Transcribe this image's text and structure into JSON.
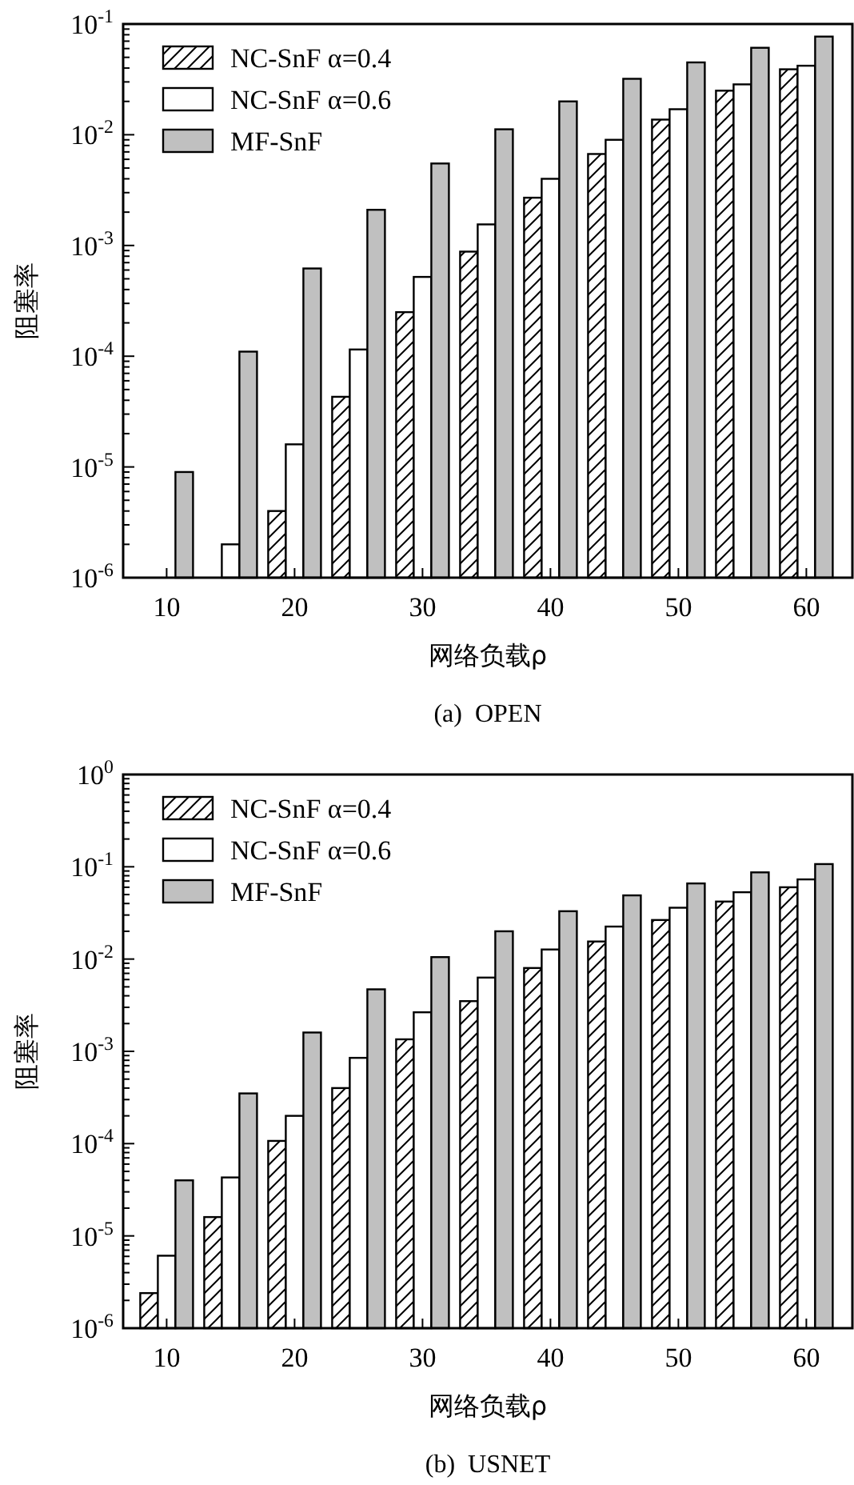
{
  "chart_data": [
    {
      "type": "bar",
      "title": "(a)  OPEN",
      "xlabel": "网络负载ρ",
      "ylabel": "阻塞率",
      "log": "y",
      "legend": "top left",
      "grid": false,
      "x": [
        10,
        15,
        20,
        25,
        30,
        35,
        40,
        45,
        50,
        55,
        60
      ],
      "xlim": [
        6.6,
        63.6
      ],
      "xticks": [
        10,
        20,
        30,
        40,
        50,
        60
      ],
      "ylim": [
        1e-06,
        0.1
      ],
      "yticks": [
        {
          "value": 1e-06,
          "label": "10$^{-6}$"
        },
        {
          "value": 2e-06,
          "label": null
        },
        {
          "value": 3e-06,
          "label": null
        },
        {
          "value": 4e-06,
          "label": null
        },
        {
          "value": 5e-06,
          "label": null
        },
        {
          "value": 6e-06,
          "label": null
        },
        {
          "value": 7e-06,
          "label": null
        },
        {
          "value": 8e-06,
          "label": null
        },
        {
          "value": 9e-06,
          "label": null
        },
        {
          "value": 1e-05,
          "label": "10$^{-5}$"
        },
        {
          "value": 2e-05,
          "label": null
        },
        {
          "value": 3e-05,
          "label": null
        },
        {
          "value": 4e-05,
          "label": null
        },
        {
          "value": 5e-05,
          "label": null
        },
        {
          "value": 6e-05,
          "label": null
        },
        {
          "value": 7e-05,
          "label": null
        },
        {
          "value": 8e-05,
          "label": null
        },
        {
          "value": 9e-05,
          "label": null
        },
        {
          "value": 0.0001,
          "label": "10$^{-4}$"
        },
        {
          "value": 0.0002,
          "label": null
        },
        {
          "value": 0.0003,
          "label": null
        },
        {
          "value": 0.0004,
          "label": null
        },
        {
          "value": 0.0005,
          "label": null
        },
        {
          "value": 0.0006,
          "label": null
        },
        {
          "value": 0.0007,
          "label": null
        },
        {
          "value": 0.0008,
          "label": null
        },
        {
          "value": 0.0009,
          "label": null
        },
        {
          "value": 0.001,
          "label": "10$^{-3}$"
        },
        {
          "value": 0.002,
          "label": null
        },
        {
          "value": 0.003,
          "label": null
        },
        {
          "value": 0.004,
          "label": null
        },
        {
          "value": 0.005,
          "label": null
        },
        {
          "value": 0.006,
          "label": null
        },
        {
          "value": 0.007,
          "label": null
        },
        {
          "value": 0.008,
          "label": null
        },
        {
          "value": 0.009,
          "label": null
        },
        {
          "value": 0.01,
          "label": "10$^{-2}$"
        },
        {
          "value": 0.02,
          "label": null
        },
        {
          "value": 0.03,
          "label": null
        },
        {
          "value": 0.04,
          "label": null
        },
        {
          "value": 0.05,
          "label": null
        },
        {
          "value": 0.06,
          "label": null
        },
        {
          "value": 0.07,
          "label": null
        },
        {
          "value": 0.08,
          "label": null
        },
        {
          "value": 0.09,
          "label": null
        },
        {
          "value": 0.1,
          "label": "10$^{-1}$"
        }
      ],
      "series": [
        {
          "name": "NC-SnF α=0.4",
          "color": "#000000",
          "values": [
            null,
            null,
            4e-06,
            4.3e-05,
            0.00025,
            0.00088,
            0.0027,
            0.0067,
            0.0137,
            0.025,
            0.039
          ]
        },
        {
          "name": "NC-SnF α=0.6",
          "color": "#ffffff",
          "values": [
            null,
            2e-06,
            1.6e-05,
            0.000115,
            0.00052,
            0.00155,
            0.004,
            0.009,
            0.017,
            0.0285,
            0.042
          ]
        },
        {
          "name": "MF-SnF",
          "color": "#c0c0c0",
          "values": [
            9e-06,
            0.00011,
            0.00062,
            0.0021,
            0.0055,
            0.0112,
            0.02,
            0.032,
            0.045,
            0.061,
            0.077
          ]
        }
      ]
    },
    {
      "type": "bar",
      "title": "(b)  USNET",
      "xlabel": "网络负载ρ",
      "ylabel": "阻塞率",
      "log": "y",
      "legend": "top left",
      "grid": false,
      "x": [
        10,
        15,
        20,
        25,
        30,
        35,
        40,
        45,
        50,
        55,
        60
      ],
      "xlim": [
        6.6,
        63.6
      ],
      "xticks": [
        10,
        20,
        30,
        40,
        50,
        60
      ],
      "ylim": [
        1e-06,
        1
      ],
      "yticks": [
        {
          "value": 1e-06,
          "label": "10$^{-6}$"
        },
        {
          "value": 2e-06,
          "label": null
        },
        {
          "value": 3e-06,
          "label": null
        },
        {
          "value": 4e-06,
          "label": null
        },
        {
          "value": 5e-06,
          "label": null
        },
        {
          "value": 6e-06,
          "label": null
        },
        {
          "value": 7e-06,
          "label": null
        },
        {
          "value": 8e-06,
          "label": null
        },
        {
          "value": 9e-06,
          "label": null
        },
        {
          "value": 1e-05,
          "label": "10$^{-5}$"
        },
        {
          "value": 2e-05,
          "label": null
        },
        {
          "value": 3e-05,
          "label": null
        },
        {
          "value": 4e-05,
          "label": null
        },
        {
          "value": 5e-05,
          "label": null
        },
        {
          "value": 6e-05,
          "label": null
        },
        {
          "value": 7e-05,
          "label": null
        },
        {
          "value": 8e-05,
          "label": null
        },
        {
          "value": 9e-05,
          "label": null
        },
        {
          "value": 0.0001,
          "label": "10$^{-4}$"
        },
        {
          "value": 0.0002,
          "label": null
        },
        {
          "value": 0.0003,
          "label": null
        },
        {
          "value": 0.0004,
          "label": null
        },
        {
          "value": 0.0005,
          "label": null
        },
        {
          "value": 0.0006,
          "label": null
        },
        {
          "value": 0.0007,
          "label": null
        },
        {
          "value": 0.0008,
          "label": null
        },
        {
          "value": 0.0009,
          "label": null
        },
        {
          "value": 0.001,
          "label": "10$^{-3}$"
        },
        {
          "value": 0.002,
          "label": null
        },
        {
          "value": 0.003,
          "label": null
        },
        {
          "value": 0.004,
          "label": null
        },
        {
          "value": 0.005,
          "label": null
        },
        {
          "value": 0.006,
          "label": null
        },
        {
          "value": 0.007,
          "label": null
        },
        {
          "value": 0.008,
          "label": null
        },
        {
          "value": 0.009,
          "label": null
        },
        {
          "value": 0.01,
          "label": "10$^{-2}$"
        },
        {
          "value": 0.02,
          "label": null
        },
        {
          "value": 0.03,
          "label": null
        },
        {
          "value": 0.04,
          "label": null
        },
        {
          "value": 0.05,
          "label": null
        },
        {
          "value": 0.06,
          "label": null
        },
        {
          "value": 0.07,
          "label": null
        },
        {
          "value": 0.08,
          "label": null
        },
        {
          "value": 0.09,
          "label": null
        },
        {
          "value": 0.1,
          "label": "10$^{-1}$"
        },
        {
          "value": 0.2,
          "label": null
        },
        {
          "value": 0.3,
          "label": null
        },
        {
          "value": 0.4,
          "label": null
        },
        {
          "value": 0.5,
          "label": null
        },
        {
          "value": 0.6,
          "label": null
        },
        {
          "value": 0.7,
          "label": null
        },
        {
          "value": 0.8,
          "label": null
        },
        {
          "value": 0.9,
          "label": null
        },
        {
          "value": 1,
          "label": "10$^{0}$"
        }
      ],
      "series": [
        {
          "name": "NC-SnF α=0.4",
          "color": "#000000",
          "values": [
            2.4e-06,
            1.6e-05,
            0.000107,
            0.0004,
            0.00135,
            0.0035,
            0.008,
            0.0155,
            0.0265,
            0.042,
            0.06
          ]
        },
        {
          "name": "NC-SnF α=0.6",
          "color": "#ffffff",
          "values": [
            6.1e-06,
            4.3e-05,
            0.0002,
            0.00085,
            0.00265,
            0.0063,
            0.0127,
            0.0225,
            0.036,
            0.053,
            0.073
          ]
        },
        {
          "name": "MF-SnF",
          "color": "#c0c0c0",
          "values": [
            4e-05,
            0.00035,
            0.0016,
            0.0047,
            0.0105,
            0.02,
            0.033,
            0.049,
            0.066,
            0.087,
            0.107
          ]
        }
      ]
    }
  ]
}
